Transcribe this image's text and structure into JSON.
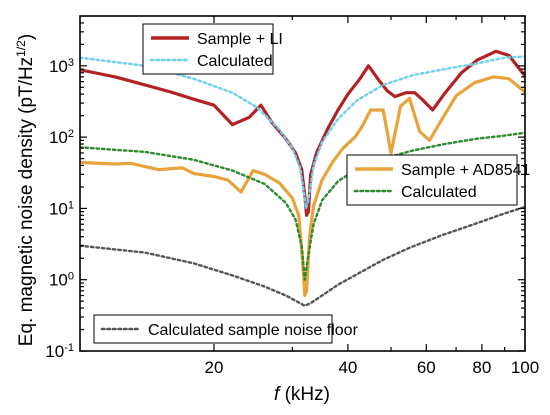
{
  "chart_data": {
    "type": "line",
    "x_scale": "log",
    "y_scale": "log",
    "xlim": [
      10,
      100
    ],
    "ylim": [
      0.1,
      5000
    ],
    "xlabel_italic": "f",
    "xlabel_rest": " (kHz)",
    "ylabel_main": "Eq. magnetic noise density (pT/Hz",
    "ylabel_sup": "1/2",
    "ylabel_close": ")",
    "x_ticks": [
      {
        "value": 20,
        "label": "20"
      },
      {
        "value": 40,
        "label": "40"
      },
      {
        "value": 60,
        "label": "60"
      },
      {
        "value": 80,
        "label": "80"
      },
      {
        "value": 100,
        "label": "100"
      }
    ],
    "y_ticks": [
      {
        "value": 0.1,
        "base": "10",
        "exp": "-1"
      },
      {
        "value": 1,
        "base": "10",
        "exp": "0"
      },
      {
        "value": 10,
        "base": "10",
        "exp": "1"
      },
      {
        "value": 100,
        "base": "10",
        "exp": "2"
      },
      {
        "value": 1000,
        "base": "10",
        "exp": "3"
      }
    ],
    "series": [
      {
        "name": "Sample + LI",
        "color": "#b22222",
        "style": "solid",
        "points": [
          [
            10,
            880
          ],
          [
            12,
            700
          ],
          [
            14,
            540
          ],
          [
            16,
            430
          ],
          [
            18,
            340
          ],
          [
            20,
            280
          ],
          [
            22,
            150
          ],
          [
            24,
            190
          ],
          [
            25.5,
            280
          ],
          [
            27,
            160
          ],
          [
            29,
            95
          ],
          [
            30.5,
            60
          ],
          [
            31.5,
            35
          ],
          [
            32,
            15
          ],
          [
            32.3,
            8
          ],
          [
            32.6,
            9
          ],
          [
            33,
            30
          ],
          [
            34,
            60
          ],
          [
            36,
            130
          ],
          [
            38,
            240
          ],
          [
            40,
            400
          ],
          [
            42.5,
            650
          ],
          [
            44.5,
            1000
          ],
          [
            47,
            620
          ],
          [
            49,
            450
          ],
          [
            51,
            370
          ],
          [
            54,
            420
          ],
          [
            56.5,
            420
          ],
          [
            59,
            330
          ],
          [
            62,
            240
          ],
          [
            66,
            410
          ],
          [
            72,
            800
          ],
          [
            78,
            1200
          ],
          [
            86,
            1600
          ],
          [
            92,
            1400
          ],
          [
            100,
            720
          ]
        ]
      },
      {
        "name": "Calculated",
        "color": "#6fd0f0",
        "style": "dotted",
        "points": [
          [
            10,
            1300
          ],
          [
            14,
            1000
          ],
          [
            18,
            660
          ],
          [
            22,
            420
          ],
          [
            25,
            260
          ],
          [
            28,
            130
          ],
          [
            30,
            70
          ],
          [
            31.2,
            38
          ],
          [
            31.8,
            18
          ],
          [
            32.2,
            10
          ],
          [
            32.6,
            13
          ],
          [
            33.5,
            40
          ],
          [
            35,
            85
          ],
          [
            38,
            180
          ],
          [
            42,
            330
          ],
          [
            48,
            540
          ],
          [
            56,
            740
          ],
          [
            66,
            900
          ],
          [
            78,
            1080
          ],
          [
            90,
            1300
          ],
          [
            100,
            1350
          ]
        ]
      },
      {
        "name": "Sample + AD8541",
        "color": "#e8a33a",
        "style": "solid",
        "points": [
          [
            10,
            44
          ],
          [
            12,
            42
          ],
          [
            13,
            43
          ],
          [
            15,
            35
          ],
          [
            17,
            37
          ],
          [
            18,
            31
          ],
          [
            20,
            28
          ],
          [
            21.5,
            25
          ],
          [
            23,
            17
          ],
          [
            24.5,
            34
          ],
          [
            26,
            30
          ],
          [
            28,
            23
          ],
          [
            30,
            14
          ],
          [
            31,
            8
          ],
          [
            31.6,
            2
          ],
          [
            32,
            0.6
          ],
          [
            32.3,
            0.7
          ],
          [
            32.8,
            4
          ],
          [
            33.5,
            11
          ],
          [
            35,
            25
          ],
          [
            37,
            45
          ],
          [
            39,
            70
          ],
          [
            41.5,
            100
          ],
          [
            43,
            140
          ],
          [
            45,
            240
          ],
          [
            48,
            240
          ],
          [
            50,
            60
          ],
          [
            52.5,
            270
          ],
          [
            55,
            350
          ],
          [
            58,
            120
          ],
          [
            61,
            90
          ],
          [
            64,
            150
          ],
          [
            70,
            380
          ],
          [
            77,
            580
          ],
          [
            85,
            700
          ],
          [
            92,
            660
          ],
          [
            100,
            430
          ]
        ]
      },
      {
        "name": "Calculated",
        "color": "#2d8a2d",
        "style": "dotted",
        "points": [
          [
            10,
            72
          ],
          [
            14,
            62
          ],
          [
            18,
            48
          ],
          [
            22,
            34
          ],
          [
            26,
            22
          ],
          [
            29,
            12
          ],
          [
            30.5,
            7
          ],
          [
            31.5,
            3
          ],
          [
            32,
            1
          ],
          [
            32.5,
            2
          ],
          [
            33.5,
            6
          ],
          [
            35,
            13
          ],
          [
            38,
            24
          ],
          [
            42,
            36
          ],
          [
            48,
            50
          ],
          [
            56,
            65
          ],
          [
            66,
            80
          ],
          [
            78,
            95
          ],
          [
            90,
            105
          ],
          [
            100,
            115
          ]
        ]
      },
      {
        "name": "Calculated sample noise floor",
        "color": "#555555",
        "style": "dotted",
        "points": [
          [
            10,
            3
          ],
          [
            14,
            2.4
          ],
          [
            18,
            1.7
          ],
          [
            22,
            1.15
          ],
          [
            26,
            0.8
          ],
          [
            29,
            0.6
          ],
          [
            31,
            0.48
          ],
          [
            32,
            0.43
          ],
          [
            33,
            0.47
          ],
          [
            35,
            0.6
          ],
          [
            38,
            0.85
          ],
          [
            42,
            1.2
          ],
          [
            48,
            1.9
          ],
          [
            55,
            2.8
          ],
          [
            65,
            4.2
          ],
          [
            78,
            6.2
          ],
          [
            90,
            8.5
          ],
          [
            100,
            10.5
          ]
        ]
      }
    ],
    "legend": {
      "top": [
        {
          "label": "Sample + LI",
          "color": "#b22222",
          "style": "solid"
        },
        {
          "label": "Calculated",
          "color": "#6fd0f0",
          "style": "dotted"
        }
      ],
      "right": [
        {
          "label": "Sample + AD8541",
          "color": "#e8a33a",
          "style": "solid"
        },
        {
          "label": "Calculated",
          "color": "#2d8a2d",
          "style": "dotted"
        }
      ],
      "bottom": [
        {
          "label": "Calculated sample noise floor",
          "color": "#555555",
          "style": "dotted"
        }
      ]
    }
  }
}
